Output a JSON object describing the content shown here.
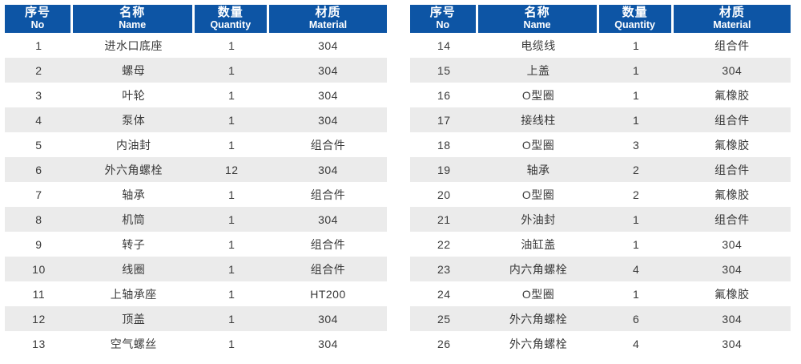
{
  "colors": {
    "header_bg": "#0d55a5",
    "header_text": "#ffffff",
    "stripe_bg": "#ebebeb",
    "row_bg": "#ffffff",
    "body_text": "#3a3a3a"
  },
  "tables": [
    {
      "name": "parts-list-items-1-13",
      "columns": [
        {
          "zh": "序号",
          "en": "No"
        },
        {
          "zh": "名称",
          "en": "Name"
        },
        {
          "zh": "数量",
          "en": "Quantity"
        },
        {
          "zh": "材质",
          "en": "Material"
        }
      ],
      "rows": [
        [
          "1",
          "进水口底座",
          "1",
          "304"
        ],
        [
          "2",
          "螺母",
          "1",
          "304"
        ],
        [
          "3",
          "叶轮",
          "1",
          "304"
        ],
        [
          "4",
          "泵体",
          "1",
          "304"
        ],
        [
          "5",
          "内油封",
          "1",
          "组合件"
        ],
        [
          "6",
          "外六角螺栓",
          "12",
          "304"
        ],
        [
          "7",
          "轴承",
          "1",
          "组合件"
        ],
        [
          "8",
          "机筒",
          "1",
          "304"
        ],
        [
          "9",
          "转子",
          "1",
          "组合件"
        ],
        [
          "10",
          "线圈",
          "1",
          "组合件"
        ],
        [
          "11",
          "上轴承座",
          "1",
          "HT200"
        ],
        [
          "12",
          "顶盖",
          "1",
          "304"
        ],
        [
          "13",
          "空气螺丝",
          "1",
          "304"
        ]
      ]
    },
    {
      "name": "parts-list-items-14-26",
      "columns": [
        {
          "zh": "序号",
          "en": "No"
        },
        {
          "zh": "名称",
          "en": "Name"
        },
        {
          "zh": "数量",
          "en": "Quantity"
        },
        {
          "zh": "材质",
          "en": "Material"
        }
      ],
      "rows": [
        [
          "14",
          "电缆线",
          "1",
          "组合件"
        ],
        [
          "15",
          "上盖",
          "1",
          "304"
        ],
        [
          "16",
          "O型圈",
          "1",
          "氟橡胶"
        ],
        [
          "17",
          "接线柱",
          "1",
          "组合件"
        ],
        [
          "18",
          "O型圈",
          "3",
          "氟橡胶"
        ],
        [
          "19",
          "轴承",
          "2",
          "组合件"
        ],
        [
          "20",
          "O型圈",
          "2",
          "氟橡胶"
        ],
        [
          "21",
          "外油封",
          "1",
          "组合件"
        ],
        [
          "22",
          "油缸盖",
          "1",
          "304"
        ],
        [
          "23",
          "内六角螺栓",
          "4",
          "304"
        ],
        [
          "24",
          "O型圈",
          "1",
          "氟橡胶"
        ],
        [
          "25",
          "外六角螺栓",
          "6",
          "304"
        ],
        [
          "26",
          "外六角螺栓",
          "4",
          "304"
        ]
      ]
    }
  ]
}
